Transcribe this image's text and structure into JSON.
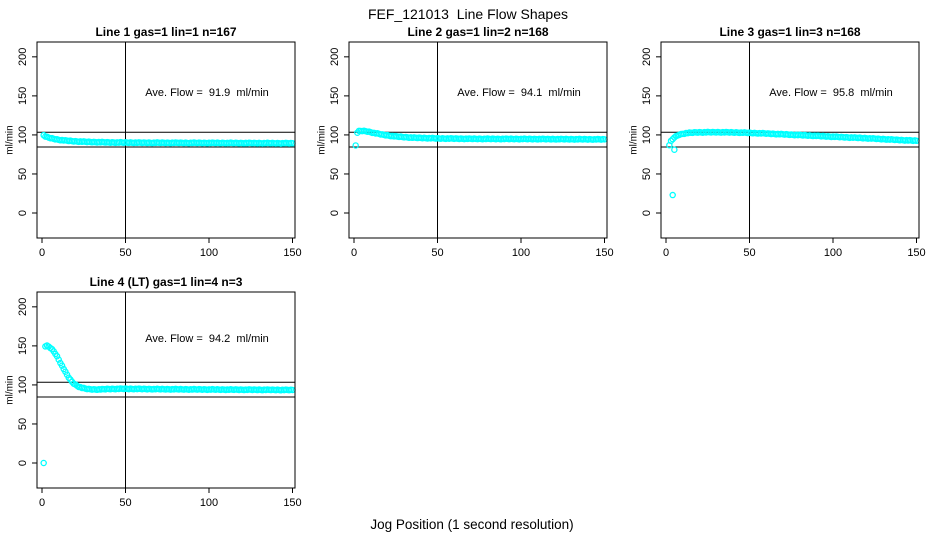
{
  "page": {
    "title": "FEF_121013  Line Flow Shapes",
    "xlabel": "Jog Position (1 second resolution)"
  },
  "colors": {
    "points": "#00ffff",
    "axis": "#000000",
    "background": "#ffffff"
  },
  "chart_data": [
    {
      "type": "scatter",
      "title": "Line 1 gas=1 lin=1 n=167",
      "annotation": "Ave. Flow =  91.9  ml/min",
      "ave_flow": 91.9,
      "n": 167,
      "ylabel": "ml/min",
      "xticks": [
        0,
        50,
        100,
        150
      ],
      "yticks": [
        0,
        50,
        100,
        150,
        200
      ],
      "xlim": [
        -3,
        151.5
      ],
      "ylim": [
        -32,
        219
      ],
      "hlines": [
        103.5,
        84.5
      ],
      "vline": 50,
      "x_range": [
        1,
        150
      ],
      "keypoints": [
        [
          1,
          99.5
        ],
        [
          2,
          98
        ],
        [
          4,
          96.5
        ],
        [
          7,
          95
        ],
        [
          10,
          93.8
        ],
        [
          14,
          92.8
        ],
        [
          20,
          91.8
        ],
        [
          28,
          91
        ],
        [
          40,
          90.4
        ],
        [
          60,
          90
        ],
        [
          90,
          89.8
        ],
        [
          120,
          89.6
        ],
        [
          150,
          89.3
        ]
      ],
      "outliers": []
    },
    {
      "type": "scatter",
      "title": "Line 2 gas=1 lin=2 n=168",
      "annotation": "Ave. Flow =  94.1  ml/min",
      "ave_flow": 94.1,
      "n": 168,
      "ylabel": "ml/min",
      "xticks": [
        0,
        50,
        100,
        150
      ],
      "yticks": [
        0,
        50,
        100,
        150,
        200
      ],
      "xlim": [
        -3,
        151.5
      ],
      "ylim": [
        -32,
        219
      ],
      "hlines": [
        103.5,
        84.5
      ],
      "vline": 50,
      "x_range": [
        2,
        150
      ],
      "keypoints": [
        [
          2,
          103
        ],
        [
          3,
          104.8
        ],
        [
          5,
          105.2
        ],
        [
          8,
          104.5
        ],
        [
          12,
          102.5
        ],
        [
          18,
          100
        ],
        [
          25,
          98
        ],
        [
          35,
          96.5
        ],
        [
          50,
          95.5
        ],
        [
          70,
          95
        ],
        [
          100,
          94.8
        ],
        [
          130,
          94.5
        ],
        [
          150,
          94.3
        ]
      ],
      "outliers": [
        [
          1,
          86.5
        ]
      ]
    },
    {
      "type": "scatter",
      "title": "Line 3 gas=1 lin=3 n=168",
      "annotation": "Ave. Flow =  95.8  ml/min",
      "ave_flow": 95.8,
      "n": 168,
      "ylabel": "ml/min",
      "xticks": [
        0,
        50,
        100,
        150
      ],
      "yticks": [
        0,
        50,
        100,
        150,
        200
      ],
      "xlim": [
        -3,
        151.5
      ],
      "ylim": [
        -32,
        219
      ],
      "hlines": [
        103.5,
        84.5
      ],
      "vline": 50,
      "x_range": [
        2,
        150
      ],
      "keypoints": [
        [
          2,
          87
        ],
        [
          3,
          92
        ],
        [
          5,
          97
        ],
        [
          8,
          100.5
        ],
        [
          12,
          102.3
        ],
        [
          18,
          103.2
        ],
        [
          30,
          103.5
        ],
        [
          45,
          103
        ],
        [
          60,
          101.8
        ],
        [
          75,
          100.3
        ],
        [
          90,
          98.8
        ],
        [
          105,
          97.2
        ],
        [
          120,
          95.8
        ],
        [
          135,
          94
        ],
        [
          150,
          92.5
        ]
      ],
      "outliers": [
        [
          4,
          23
        ],
        [
          5,
          81
        ]
      ]
    },
    {
      "type": "scatter",
      "title": "Line 4 (LT) gas=1 lin=4 n=3",
      "annotation": "Ave. Flow =  94.2  ml/min",
      "ave_flow": 94.2,
      "n": 3,
      "ylabel": "ml/min",
      "xticks": [
        0,
        50,
        100,
        150
      ],
      "yticks": [
        0,
        50,
        100,
        150,
        200
      ],
      "xlim": [
        -3,
        151.5
      ],
      "ylim": [
        -32,
        219
      ],
      "hlines": [
        103.5,
        84.5
      ],
      "vline": 50,
      "x_range": [
        2,
        150
      ],
      "keypoints": [
        [
          2,
          149.5
        ],
        [
          3,
          150
        ],
        [
          4,
          149
        ],
        [
          5,
          147.5
        ],
        [
          6,
          145.5
        ],
        [
          7,
          143
        ],
        [
          8,
          140
        ],
        [
          9,
          136.5
        ],
        [
          10,
          132.5
        ],
        [
          11,
          128.5
        ],
        [
          12,
          124.5
        ],
        [
          13,
          120.5
        ],
        [
          14,
          116.5
        ],
        [
          15,
          113
        ],
        [
          16,
          109.5
        ],
        [
          17,
          106.5
        ],
        [
          18,
          104
        ],
        [
          19,
          102
        ],
        [
          20,
          100.3
        ],
        [
          22,
          97.8
        ],
        [
          24,
          96.2
        ],
        [
          26,
          95.2
        ],
        [
          28,
          94.6
        ],
        [
          31,
          94.2
        ],
        [
          35,
          94.3
        ],
        [
          40,
          94.8
        ],
        [
          45,
          95
        ],
        [
          50,
          95
        ],
        [
          60,
          94.8
        ],
        [
          75,
          94.5
        ],
        [
          90,
          94.3
        ],
        [
          110,
          94
        ],
        [
          130,
          93.8
        ],
        [
          150,
          93.5
        ]
      ],
      "outliers": [
        [
          1,
          0
        ]
      ]
    }
  ]
}
